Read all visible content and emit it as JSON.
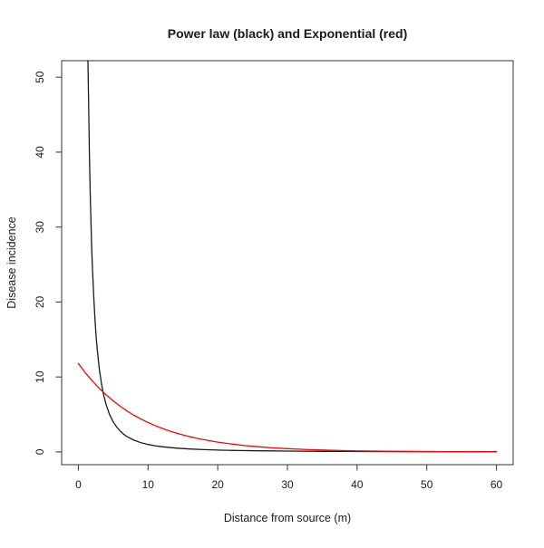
{
  "chart_data": {
    "type": "line",
    "title": "Power law (black) and Exponential (red)",
    "xlabel": "Distance from source (m)",
    "ylabel": "Disease incidence",
    "x_ticks": [
      0,
      10,
      20,
      30,
      40,
      50,
      60
    ],
    "y_ticks": [
      0,
      10,
      20,
      30,
      40,
      50
    ],
    "xlim": [
      -2.4,
      62.4
    ],
    "ylim": [
      -1.7,
      52.2
    ],
    "grid": false,
    "legend_position": "none",
    "series": [
      {
        "name": "Power law",
        "color": "#1a1a1a",
        "points": [
          [
            1.38,
            52.2
          ],
          [
            1.45,
            47.6
          ],
          [
            1.5,
            44.4
          ],
          [
            1.6,
            39.1
          ],
          [
            1.7,
            34.6
          ],
          [
            1.8,
            30.9
          ],
          [
            1.9,
            27.7
          ],
          [
            2.0,
            25.0
          ],
          [
            2.2,
            20.7
          ],
          [
            2.4,
            17.4
          ],
          [
            2.6,
            14.8
          ],
          [
            2.8,
            12.8
          ],
          [
            3.0,
            11.1
          ],
          [
            3.3,
            9.2
          ],
          [
            3.6,
            7.7
          ],
          [
            4.0,
            6.25
          ],
          [
            4.5,
            4.94
          ],
          [
            5.0,
            4.0
          ],
          [
            5.5,
            3.31
          ],
          [
            6.0,
            2.78
          ],
          [
            6.5,
            2.37
          ],
          [
            7.0,
            2.04
          ],
          [
            8.0,
            1.56
          ],
          [
            9.0,
            1.23
          ],
          [
            10,
            1.0
          ],
          [
            11,
            0.83
          ],
          [
            12,
            0.69
          ],
          [
            14,
            0.51
          ],
          [
            16,
            0.39
          ],
          [
            18,
            0.31
          ],
          [
            20,
            0.25
          ],
          [
            23,
            0.19
          ],
          [
            26,
            0.15
          ],
          [
            30,
            0.11
          ],
          [
            35,
            0.08
          ],
          [
            40,
            0.06
          ],
          [
            45,
            0.05
          ],
          [
            50,
            0.04
          ],
          [
            55,
            0.033
          ],
          [
            60,
            0.028
          ]
        ]
      },
      {
        "name": "Exponential",
        "color": "#ff0000",
        "points": [
          [
            0,
            11.8
          ],
          [
            1,
            10.57
          ],
          [
            2,
            9.47
          ],
          [
            3,
            8.48
          ],
          [
            4,
            7.6
          ],
          [
            5,
            6.81
          ],
          [
            6,
            6.1
          ],
          [
            7,
            5.46
          ],
          [
            8,
            4.89
          ],
          [
            9,
            4.38
          ],
          [
            10,
            3.93
          ],
          [
            11,
            3.52
          ],
          [
            12,
            3.15
          ],
          [
            13,
            2.82
          ],
          [
            14,
            2.53
          ],
          [
            15,
            2.27
          ],
          [
            16,
            2.03
          ],
          [
            17,
            1.82
          ],
          [
            18,
            1.63
          ],
          [
            20,
            1.31
          ],
          [
            22,
            1.05
          ],
          [
            24,
            0.84
          ],
          [
            26,
            0.68
          ],
          [
            28,
            0.54
          ],
          [
            30,
            0.44
          ],
          [
            33,
            0.31
          ],
          [
            36,
            0.23
          ],
          [
            40,
            0.14
          ],
          [
            44,
            0.094
          ],
          [
            48,
            0.06
          ],
          [
            52,
            0.039
          ],
          [
            56,
            0.025
          ],
          [
            60,
            0.016
          ]
        ]
      }
    ]
  }
}
